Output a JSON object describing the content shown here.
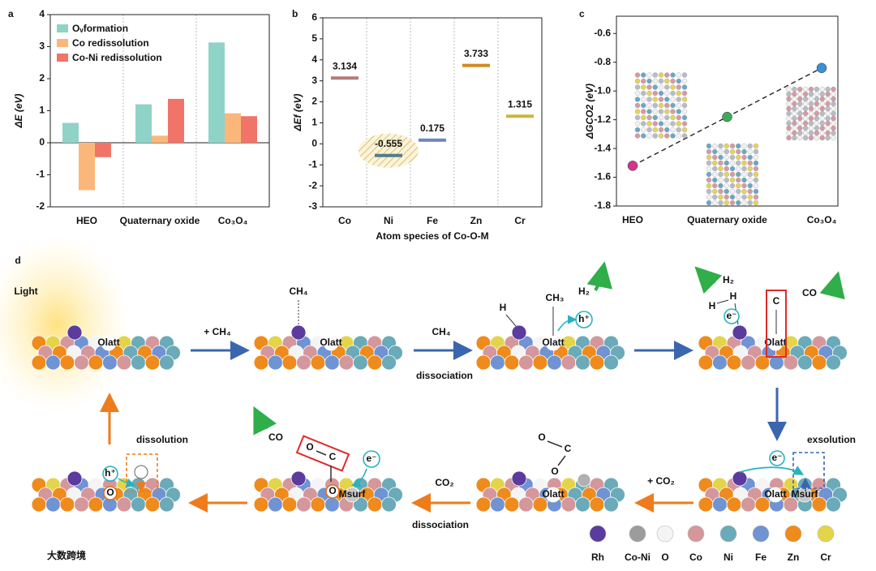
{
  "chart_data": [
    {
      "type": "bar",
      "label": "a",
      "y_label": "ΔE (eV)",
      "categories": [
        "HEO",
        "Quaternary oxide",
        "Co₃O₄"
      ],
      "series": [
        {
          "name": "Oᵥformation",
          "color": "#8fd3c8",
          "values": [
            0.62,
            1.2,
            3.13
          ]
        },
        {
          "name": "Co redissolution",
          "color": "#fbb77a",
          "values": [
            -1.48,
            0.22,
            0.92
          ]
        },
        {
          "name": "Co-Ni redissolution",
          "color": "#f07468",
          "values": [
            -0.45,
            1.37,
            0.83
          ]
        }
      ],
      "ylim": [
        -2,
        4
      ],
      "yticks": [
        -2,
        -1,
        0,
        1,
        2,
        3,
        4
      ],
      "legend": "upper left"
    },
    {
      "type": "level",
      "label": "b",
      "y_label": "ΔEf (eV)",
      "x_label": "Atom species of Co-O-M",
      "categories": [
        "Co",
        "Ni",
        "Fe",
        "Zn",
        "Cr"
      ],
      "values": [
        3.134,
        -0.555,
        0.175,
        3.733,
        1.315
      ],
      "colors": [
        "#b87a7a",
        "#4f7d8c",
        "#6b86c0",
        "#d08a1e",
        "#c8b83a"
      ],
      "ylim": [
        -3,
        6
      ],
      "yticks": [
        -3,
        -2,
        -1,
        0,
        1,
        2,
        3,
        4,
        5,
        6
      ]
    },
    {
      "type": "scatter-line",
      "label": "c",
      "y_label": "ΔGCO2 (eV)",
      "categories": [
        "HEO",
        "Quaternary oxide",
        "Co₃O₄"
      ],
      "values": [
        -1.52,
        -1.18,
        -0.84
      ],
      "colors": [
        "#d6338a",
        "#3fa85a",
        "#3d8fd6"
      ],
      "ylim": [
        -1.8,
        -0.48
      ],
      "yticks": [
        -1.8,
        -1.6,
        -1.4,
        -1.2,
        {
          "value": -1,
          "label": "-1.0"
        },
        -0.8,
        -0.6
      ]
    }
  ],
  "diagram": {
    "label": "d",
    "light": "Light",
    "arrow_labels": {
      "add_ch4": "+ CH₄",
      "ch4": "CH₄",
      "ch4_dissociation": "dissociation",
      "add_co2": "+ CO₂",
      "co2": "CO₂",
      "co2_dissociation": "dissociation",
      "exsolution": "exsolution",
      "dissolution": "dissolution"
    },
    "species": {
      "ch4": "CH₄",
      "h": "H",
      "ch3": "CH₃",
      "h_plus": "h⁺",
      "h2_1": "H₂",
      "h_a": "H",
      "h_b": "H",
      "e_minus_1": "e⁻",
      "c": "C",
      "h2_2": "H₂",
      "co_1": "CO",
      "e_minus_2": "e⁻",
      "co2_o1": "O",
      "co2_c": "C",
      "co2_o2": "O",
      "co_2": "CO",
      "box_o": "O",
      "box_c": "C",
      "box_o2": "O",
      "e_minus_3": "e⁻",
      "h_plus_2": "h⁺",
      "o_ring": "O"
    },
    "site_labels": {
      "olatt": "Olatt",
      "msurf": "Msurf"
    },
    "legend": [
      "Rh",
      "Co-Ni",
      "O",
      "Co",
      "Ni",
      "Fe",
      "Zn",
      "Cr"
    ]
  },
  "watermark": "大数跨境"
}
